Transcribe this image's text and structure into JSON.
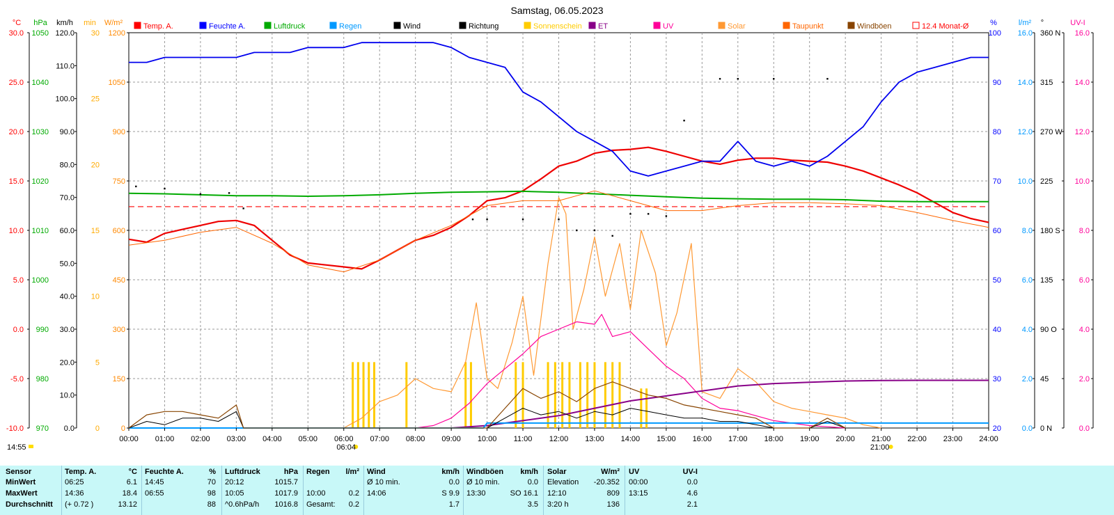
{
  "title": "Samstag, 06.05.2023",
  "legend": [
    {
      "label": "Temp. A.",
      "color": "#ff0000"
    },
    {
      "label": "Feuchte A.",
      "color": "#0000ff"
    },
    {
      "label": "Luftdruck",
      "color": "#00aa00"
    },
    {
      "label": "Regen",
      "color": "#0099ff"
    },
    {
      "label": "Wind",
      "color": "#000000"
    },
    {
      "label": "Richtung",
      "color": "#000000"
    },
    {
      "label": "Sonnenschein",
      "color": "#ffcc00"
    },
    {
      "label": "ET",
      "color": "#880088"
    },
    {
      "label": "UV",
      "color": "#ff0099"
    },
    {
      "label": "Solar",
      "color": "#ff9933"
    },
    {
      "label": "Taupunkt",
      "color": "#ff6600"
    },
    {
      "label": "Windböen",
      "color": "#884400"
    },
    {
      "label": "12.4 Monat-Ø",
      "color": "#ff0000"
    }
  ],
  "axes": {
    "temp": {
      "unit": "°C",
      "color": "#ff0000",
      "ticks": [
        "30.0",
        "25.0",
        "20.0",
        "15.0",
        "10.0",
        "5.0",
        "0.0",
        "-5.0",
        "-10.0"
      ]
    },
    "pressure": {
      "unit": "hPa",
      "color": "#00aa00",
      "ticks": [
        "1050",
        "1040",
        "1030",
        "1020",
        "1010",
        "1000",
        "990",
        "980",
        "970"
      ]
    },
    "wind": {
      "unit": "km/h",
      "color": "#000000",
      "ticks": [
        "120.0",
        "110.0",
        "100.0",
        "90.0",
        "80.0",
        "70.0",
        "60.0",
        "50.0",
        "40.0",
        "30.0",
        "20.0",
        "10.0",
        "0.0"
      ]
    },
    "sun_min": {
      "unit": "min",
      "color": "#ffaa00",
      "ticks": [
        "30",
        "25",
        "20",
        "15",
        "10",
        "5",
        "0"
      ]
    },
    "solar": {
      "unit": "W/m²",
      "color": "#ff8800",
      "ticks": [
        "1200",
        "1050",
        "900",
        "750",
        "600",
        "450",
        "300",
        "150",
        "0"
      ]
    },
    "humidity": {
      "unit": "%",
      "color": "#0000ff",
      "ticks": [
        "100",
        "90",
        "80",
        "70",
        "60",
        "50",
        "40",
        "30",
        "20"
      ]
    },
    "rain": {
      "unit": "l/m²",
      "color": "#0099ff",
      "ticks": [
        "16.0",
        "14.0",
        "12.0",
        "10.0",
        "8.0",
        "6.0",
        "4.0",
        "2.0",
        "0.0"
      ]
    },
    "direction": {
      "unit": "°",
      "color": "#000000",
      "ticks": [
        "360 N",
        "315",
        "270 W",
        "225",
        "180 S",
        "135",
        "90 O",
        "45",
        "0 N"
      ]
    },
    "uvi": {
      "unit": "UV-I",
      "color": "#ff0099",
      "ticks": [
        "16.0",
        "14.0",
        "12.0",
        "10.0",
        "8.0",
        "6.0",
        "4.0",
        "2.0",
        "0.0"
      ]
    }
  },
  "x_ticks": [
    "00:00",
    "01:00",
    "02:00",
    "03:00",
    "04:00",
    "05:00",
    "06:00",
    "07:00",
    "08:00",
    "09:00",
    "10:00",
    "11:00",
    "12:00",
    "13:00",
    "14:00",
    "15:00",
    "16:00",
    "17:00",
    "18:00",
    "19:00",
    "20:00",
    "21:00",
    "22:00",
    "23:00",
    "24:00"
  ],
  "sunrise": "06:04",
  "sunset": "21:00",
  "current_time": "14:55",
  "chart_data": {
    "type": "line",
    "title": "Samstag, 06.05.2023",
    "x_unit": "hours",
    "xlim": [
      0,
      24
    ],
    "month_avg_temp": 12.4,
    "series": [
      {
        "name": "Temp. A.",
        "axis": "temp",
        "x": [
          0,
          0.5,
          1,
          1.5,
          2,
          2.5,
          3,
          3.5,
          4,
          4.5,
          5,
          5.5,
          6,
          6.5,
          7,
          7.5,
          8,
          8.5,
          9,
          9.5,
          10,
          10.5,
          11,
          11.5,
          12,
          12.5,
          13,
          13.5,
          14,
          14.5,
          15,
          15.5,
          16,
          16.5,
          17,
          17.5,
          18,
          18.5,
          19,
          19.5,
          20,
          20.5,
          21,
          21.5,
          22,
          22.5,
          23,
          23.5,
          24
        ],
        "y": [
          9.1,
          8.8,
          9.7,
          10.1,
          10.5,
          10.9,
          11.0,
          10.5,
          9.0,
          7.5,
          6.7,
          6.5,
          6.3,
          6.1,
          7.0,
          8.0,
          9.0,
          9.5,
          10.3,
          11.5,
          13.0,
          13.3,
          14.0,
          15.2,
          16.5,
          17.0,
          17.8,
          18.1,
          18.2,
          18.4,
          18.0,
          17.5,
          17.0,
          16.7,
          17.1,
          17.3,
          17.3,
          17.1,
          17.0,
          16.9,
          16.5,
          16.0,
          15.3,
          14.6,
          13.8,
          12.8,
          11.8,
          11.2,
          10.8
        ]
      },
      {
        "name": "Feuchte A.",
        "axis": "humidity",
        "x": [
          0,
          0.5,
          1,
          1.5,
          2,
          2.5,
          3,
          3.5,
          4,
          4.5,
          5,
          5.5,
          6,
          6.5,
          7,
          7.5,
          8,
          8.5,
          9,
          9.5,
          10,
          10.5,
          11,
          11.5,
          12,
          12.5,
          13,
          13.5,
          14,
          14.5,
          15,
          15.5,
          16,
          16.5,
          17,
          17.5,
          18,
          18.5,
          19,
          19.5,
          20,
          20.5,
          21,
          21.5,
          22,
          22.5,
          23,
          23.5,
          24
        ],
        "y": [
          94,
          94,
          95,
          95,
          95,
          95,
          95,
          96,
          96,
          96,
          97,
          97,
          97,
          98,
          98,
          98,
          98,
          98,
          97,
          95,
          94,
          93,
          88,
          86,
          83,
          80,
          78,
          76,
          72,
          71,
          72,
          73,
          74,
          74,
          78,
          74,
          73,
          74,
          73,
          75,
          78,
          81,
          86,
          90,
          92,
          93,
          94,
          95,
          95
        ]
      },
      {
        "name": "Luftdruck",
        "axis": "pressure",
        "x": [
          0,
          1,
          2,
          3,
          4,
          5,
          6,
          7,
          8,
          9,
          10,
          11,
          12,
          13,
          14,
          15,
          16,
          17,
          18,
          19,
          20,
          21,
          22,
          23,
          24
        ],
        "y": [
          1017.5,
          1017.4,
          1017.2,
          1017.0,
          1017.0,
          1016.9,
          1017.0,
          1017.2,
          1017.5,
          1017.7,
          1017.8,
          1017.9,
          1017.7,
          1017.4,
          1017.1,
          1016.8,
          1016.5,
          1016.4,
          1016.3,
          1016.3,
          1016.2,
          1015.9,
          1015.8,
          1015.8,
          1015.8
        ]
      },
      {
        "name": "Solar",
        "axis": "solar",
        "x": [
          6,
          6.5,
          7,
          7.5,
          8,
          8.5,
          9,
          9.4,
          9.7,
          10,
          10.3,
          10.7,
          11,
          11.3,
          11.7,
          12,
          12.2,
          12.4,
          12.7,
          13,
          13.3,
          13.7,
          14,
          14.3,
          14.7,
          15,
          15.3,
          15.7,
          16,
          16.5,
          17,
          17.5,
          18,
          18.5,
          19,
          19.5,
          20,
          20.5,
          21
        ],
        "y": [
          0,
          30,
          80,
          100,
          150,
          120,
          110,
          200,
          380,
          150,
          120,
          260,
          400,
          160,
          500,
          700,
          650,
          300,
          420,
          580,
          400,
          560,
          360,
          600,
          470,
          250,
          350,
          560,
          110,
          90,
          180,
          140,
          80,
          60,
          50,
          40,
          30,
          10,
          0
        ]
      },
      {
        "name": "UV",
        "axis": "uvi",
        "x": [
          8,
          8.5,
          9,
          9.5,
          10,
          10.5,
          11,
          11.5,
          12,
          12.5,
          13,
          13.2,
          13.5,
          14,
          14.5,
          15,
          15.5,
          16,
          16.5,
          17,
          17.5,
          18,
          18.5,
          19,
          19.5,
          20
        ],
        "y": [
          0,
          0.1,
          0.4,
          1.0,
          1.8,
          2.4,
          3.0,
          3.7,
          4.0,
          4.3,
          4.2,
          4.6,
          3.7,
          3.9,
          3.2,
          2.5,
          2.0,
          1.2,
          0.8,
          0.7,
          0.5,
          0.3,
          0.2,
          0.1,
          0.05,
          0
        ]
      },
      {
        "name": "ET",
        "axis": "rain",
        "x": [
          9,
          10,
          11,
          12,
          13,
          14,
          15,
          16,
          17,
          18,
          19,
          20,
          21,
          22,
          23,
          24
        ],
        "y": [
          0,
          0.1,
          0.3,
          0.5,
          0.8,
          1.1,
          1.3,
          1.5,
          1.7,
          1.8,
          1.85,
          1.9,
          1.92,
          1.93,
          1.93,
          1.93
        ]
      },
      {
        "name": "Regen",
        "axis": "rain",
        "x": [
          0,
          9.9,
          10,
          24
        ],
        "y": [
          0,
          0,
          0.2,
          0.2
        ]
      },
      {
        "name": "Wind",
        "axis": "wind",
        "x": [
          0,
          0.5,
          1,
          1.5,
          2,
          2.5,
          3,
          3.2,
          10,
          10.5,
          11,
          11.5,
          12,
          12.5,
          13,
          13.5,
          14,
          14.5,
          15,
          15.5,
          16,
          16.5,
          17,
          17.5,
          18,
          19,
          19.5,
          20
        ],
        "y": [
          0,
          2,
          1,
          3,
          3,
          2,
          5,
          0,
          0,
          3,
          6,
          4,
          5,
          3,
          5,
          4,
          6,
          5,
          4,
          3,
          3,
          2,
          2,
          1,
          0,
          0,
          2,
          0
        ]
      },
      {
        "name": "Windböen",
        "axis": "wind",
        "x": [
          0,
          0.5,
          1,
          1.5,
          2,
          2.5,
          3,
          3.2,
          10,
          10.5,
          11,
          11.5,
          12,
          12.5,
          13,
          13.5,
          14,
          14.5,
          15,
          15.5,
          16,
          16.5,
          17,
          17.5,
          18,
          19,
          19.5,
          20
        ],
        "y": [
          0,
          4,
          5,
          5,
          4,
          3,
          7,
          0,
          0,
          6,
          12,
          9,
          11,
          8,
          12,
          14,
          12,
          10,
          9,
          7,
          6,
          5,
          4,
          3,
          0,
          0,
          3,
          0
        ]
      },
      {
        "name": "Richtung",
        "axis": "direction",
        "x": [
          0.2,
          1,
          2,
          2.8,
          3.2,
          9.6,
          10,
          11,
          12,
          12.5,
          13,
          13.5,
          14,
          14.5,
          15,
          15.5,
          16.5,
          17,
          18,
          19.5
        ],
        "y": [
          220,
          218,
          213,
          214,
          200,
          190,
          190,
          190,
          190,
          180,
          180,
          175,
          195,
          195,
          193,
          280,
          318,
          318,
          318,
          318
        ]
      },
      {
        "name": "Taupunkt",
        "axis": "temp",
        "x": [
          0,
          1,
          2,
          3,
          4,
          5,
          6,
          7,
          8,
          9,
          10,
          11,
          12,
          13,
          14,
          15,
          16,
          17,
          18,
          19,
          20,
          21,
          22,
          23,
          24
        ],
        "y": [
          8.5,
          9.0,
          9.8,
          10.3,
          8.7,
          6.5,
          5.8,
          7.0,
          9.0,
          10.5,
          12.5,
          13.0,
          13.0,
          14.0,
          13.0,
          12.0,
          12.0,
          12.5,
          12.8,
          12.8,
          12.7,
          12.5,
          11.8,
          11.0,
          10.3
        ]
      }
    ],
    "sunshine_minutes": {
      "axis": "sun_min",
      "x": [
        6.25,
        6.4,
        6.55,
        6.7,
        6.85,
        7.75,
        9.4,
        9.55,
        10.8,
        11.0,
        11.7,
        11.9,
        12.1,
        12.3,
        12.6,
        12.8,
        13.0,
        13.3,
        13.5,
        13.7,
        14.3,
        14.45
      ],
      "y": [
        5,
        5,
        5,
        5,
        5,
        5,
        5,
        5,
        5,
        5,
        5,
        5,
        5,
        5,
        5,
        5,
        5,
        5,
        5,
        5,
        3,
        3
      ]
    }
  },
  "stats": {
    "headers": {
      "sensor": "Sensor",
      "temp": "Temp. A.",
      "temp_unit": "°C",
      "hum": "Feuchte A.",
      "hum_unit": "%",
      "press": "Luftdruck",
      "press_unit": "hPa",
      "rain": "Regen",
      "rain_unit": "l/m²",
      "wind": "Wind",
      "wind_unit": "km/h",
      "gust": "Windböen",
      "gust_unit": "km/h",
      "solar": "Solar",
      "solar_unit": "W/m²",
      "uv": "UV",
      "uv_unit": "UV-I"
    },
    "rows": [
      {
        "label": "MinWert",
        "temp_t": "06:25",
        "temp_v": "6.1",
        "hum_t": "14:45",
        "hum_v": "70",
        "press_t": "20:12",
        "press_v": "1015.7",
        "rain_t": "",
        "rain_v": "",
        "wind_t": "Ø 10 min.",
        "wind_v": "0.0",
        "gust_t": "Ø 10 min.",
        "gust_v": "0.0",
        "solar_t": "Elevation",
        "solar_v": "-20.352",
        "uv_t": "00:00",
        "uv_v": "0.0"
      },
      {
        "label": "MaxWert",
        "temp_t": "14:36",
        "temp_v": "18.4",
        "hum_t": "06:55",
        "hum_v": "98",
        "press_t": "10:05",
        "press_v": "1017.9",
        "rain_t": "10:00",
        "rain_v": "0.2",
        "wind_t": "14:06",
        "wind_v": "S 9.9",
        "gust_t": "13:30",
        "gust_v": "SO 16.1",
        "solar_t": "12:10",
        "solar_v": "809",
        "uv_t": "13:15",
        "uv_v": "4.6"
      },
      {
        "label": "Durchschnitt",
        "temp_t": "(+ 0.72 )",
        "temp_v": "13.12",
        "hum_t": "",
        "hum_v": "88",
        "press_t": "^0.6hPa/h",
        "press_v": "1016.8",
        "rain_t": "Gesamt:",
        "rain_v": "0.2",
        "wind_t": "",
        "wind_v": "1.7",
        "gust_t": "",
        "gust_v": "3.5",
        "solar_t": "3:20 h",
        "solar_v": "136",
        "uv_t": "",
        "uv_v": "2.1"
      }
    ]
  }
}
